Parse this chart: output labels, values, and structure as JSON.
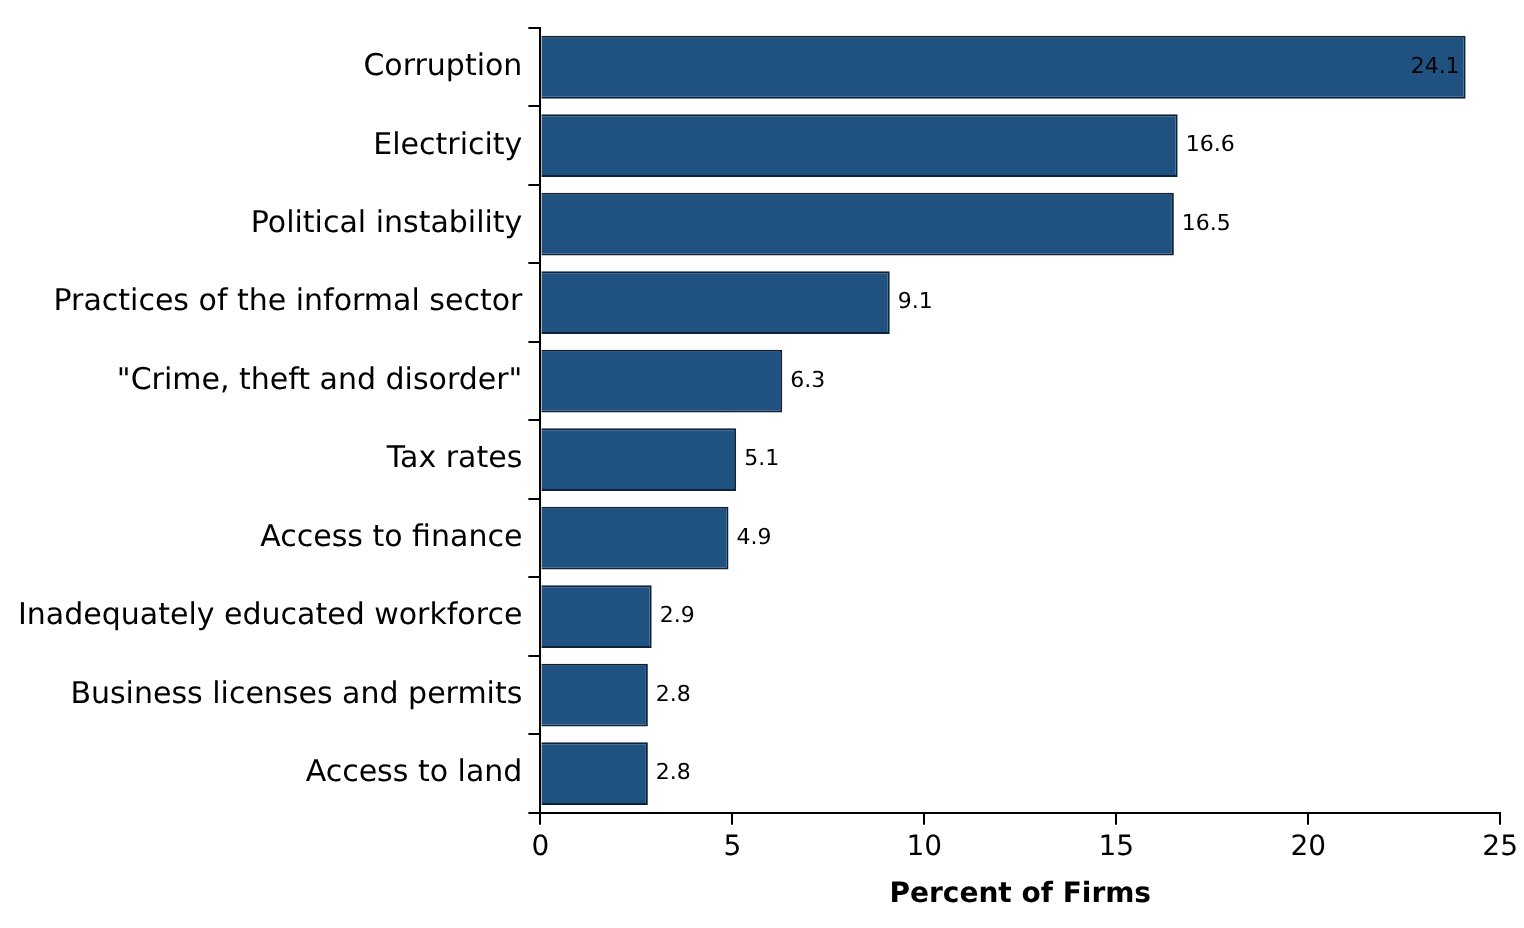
{
  "chart_data": {
    "type": "bar",
    "orientation": "horizontal",
    "xlabel": "Percent of Firms",
    "categories": [
      "Corruption",
      "Electricity",
      "Political instability",
      "Practices of the informal sector",
      "\"Crime, theft and disorder\"",
      "Tax rates",
      "Access to finance",
      "Inadequately educated workforce",
      "Business licenses and permits",
      "Access to land"
    ],
    "values": [
      24.1,
      16.6,
      16.5,
      9.1,
      6.3,
      5.1,
      4.9,
      2.9,
      2.8,
      2.8
    ],
    "color": "#1f5280",
    "xlim": [
      0,
      25
    ],
    "xticks": [
      0,
      5,
      10,
      15,
      20,
      25
    ],
    "grid": false,
    "legend": false,
    "data_labels": true
  }
}
